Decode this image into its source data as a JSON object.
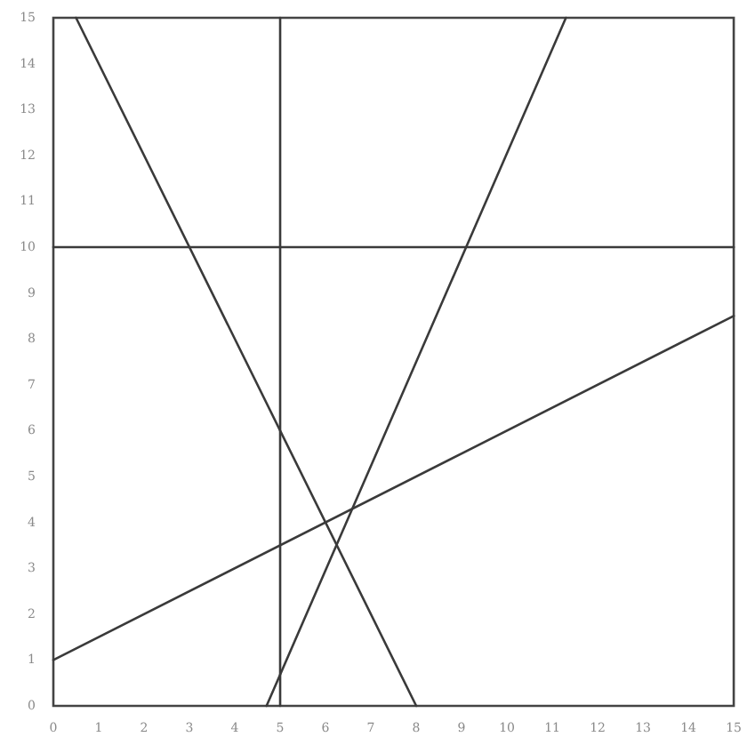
{
  "chart_data": {
    "type": "line",
    "series": [
      {
        "color": "#3a3a3a",
        "x": [
          0,
          15
        ],
        "values": [
          10,
          10
        ]
      },
      {
        "color": "#3a3a3a",
        "x": [
          5,
          5
        ],
        "values": [
          0,
          15
        ]
      },
      {
        "color": "#3a3a3a",
        "x": [
          0.5,
          8
        ],
        "values": [
          15,
          0
        ]
      },
      {
        "color": "#3a3a3a",
        "x": [
          4.7,
          11.3
        ],
        "values": [
          0,
          15
        ]
      },
      {
        "color": "#3a3a3a",
        "x": [
          0,
          15
        ],
        "values": [
          1,
          8.5
        ]
      }
    ],
    "xlim": [
      0,
      15
    ],
    "xticks": [
      0,
      1,
      2,
      3,
      4,
      5,
      6,
      7,
      8,
      9,
      10,
      11,
      12,
      13,
      14,
      15
    ],
    "ylim": [
      0,
      15
    ],
    "yticks": [
      0,
      1,
      2,
      3,
      4,
      5,
      6,
      7,
      8,
      9,
      10,
      11,
      12,
      13,
      14,
      15
    ]
  }
}
